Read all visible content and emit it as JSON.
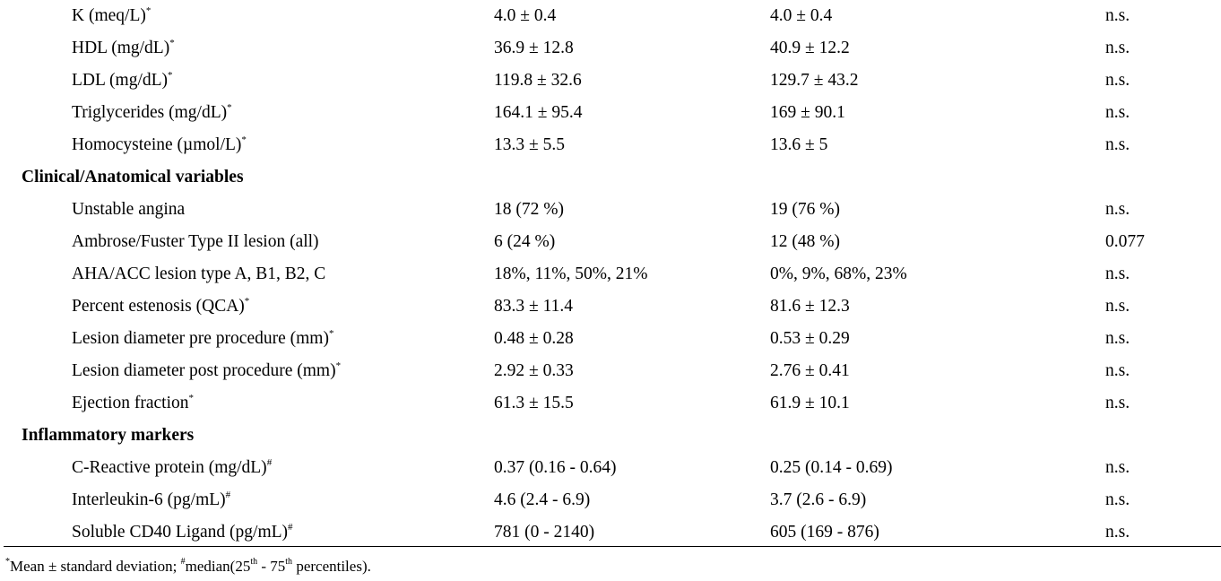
{
  "rows": [
    {
      "label": "K (meq/L)",
      "mark": "*",
      "g1": "4.0 ± 0.4",
      "g2": "4.0 ± 0.4",
      "p": "n.s."
    },
    {
      "label": "HDL (mg/dL)",
      "mark": "*",
      "g1": "36.9 ± 12.8",
      "g2": "40.9 ± 12.2",
      "p": "n.s."
    },
    {
      "label": "LDL (mg/dL)",
      "mark": "*",
      "g1": "119.8 ± 32.6",
      "g2": "129.7 ± 43.2",
      "p": "n.s."
    },
    {
      "label": "Triglycerides (mg/dL)",
      "mark": "*",
      "g1": "164.1 ± 95.4",
      "g2": "169 ± 90.1",
      "p": "n.s."
    },
    {
      "label": "Homocysteine (µmol/L)",
      "mark": "*",
      "g1": "13.3 ± 5.5",
      "g2": "13.6 ± 5",
      "p": "n.s."
    },
    {
      "section": "Clinical/Anatomical variables"
    },
    {
      "label": "Unstable angina",
      "mark": "",
      "g1": "18 (72 %)",
      "g2": "19 (76 %)",
      "p": "n.s."
    },
    {
      "label": "Ambrose/Fuster Type II lesion (all)",
      "mark": "",
      "g1": "6 (24 %)",
      "g2": "12 (48 %)",
      "p": "0.077"
    },
    {
      "label": "AHA/ACC lesion type A, B1, B2, C",
      "mark": "",
      "g1": "18%, 11%, 50%, 21%",
      "g2": "0%, 9%, 68%, 23%",
      "p": "n.s."
    },
    {
      "label": "Percent estenosis (QCA)",
      "mark": "*",
      "g1": "83.3 ± 11.4",
      "g2": "81.6 ± 12.3",
      "p": "n.s."
    },
    {
      "label": "Lesion diameter pre procedure (mm)",
      "mark": "*",
      "g1": "0.48 ± 0.28",
      "g2": "0.53 ± 0.29",
      "p": "n.s."
    },
    {
      "label": "Lesion diameter post procedure (mm)",
      "mark": "*",
      "g1": "2.92 ± 0.33",
      "g2": "2.76 ± 0.41",
      "p": "n.s."
    },
    {
      "label": "Ejection fraction",
      "mark": "*",
      "g1": "61.3 ± 15.5",
      "g2": "61.9 ± 10.1",
      "p": "n.s."
    },
    {
      "section": "Inflammatory markers"
    },
    {
      "label": "C-Reactive protein (mg/dL)",
      "mark": "#",
      "g1": "0.37 (0.16 - 0.64)",
      "g2": "0.25 (0.14 - 0.69)",
      "p": "n.s."
    },
    {
      "label": "Interleukin-6 (pg/mL)",
      "mark": "#",
      "g1": "4.6 (2.4 - 6.9)",
      "g2": "3.7 (2.6 - 6.9)",
      "p": "n.s."
    },
    {
      "label": "Soluble CD40 Ligand (pg/mL)",
      "mark": "#",
      "g1": "781 (0 - 2140)",
      "g2": "605 (169 - 876)",
      "p": "n.s."
    }
  ],
  "footnote": {
    "star_mark": "*",
    "star_text": "Mean ± standard deviation; ",
    "hash_mark": "#",
    "hash_text": "median(25",
    "th1": "th",
    "mid_text": " - 75",
    "th2": "th",
    "end_text": " percentiles)."
  }
}
